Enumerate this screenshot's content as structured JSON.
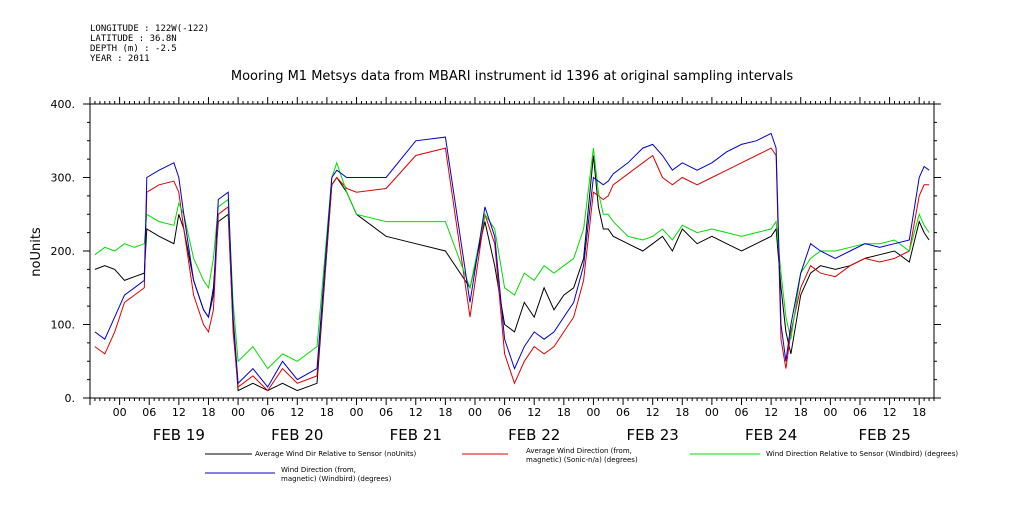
{
  "meta_lines": [
    "LONGITUDE : 122W(-122)",
    "LATITUDE : 36.8N",
    "DEPTH (m) : -2.5",
    "YEAR : 2011"
  ],
  "chart_data": {
    "type": "line",
    "title": "Mooring M1 Metsys data from MBARI instrument id 1396 at original sampling intervals",
    "ylabel": "noUnits",
    "xlabel": "",
    "ylim": [
      0,
      400
    ],
    "xlim": [
      -6,
      165
    ],
    "x_unit": "hours since FEB 19 00:00",
    "y_ticks": [
      0,
      100,
      200,
      300,
      400
    ],
    "y_tick_labels": [
      "0.",
      "100.",
      "200.",
      "300.",
      "400."
    ],
    "x_ticks": [
      0,
      6,
      12,
      18,
      24,
      30,
      36,
      42,
      48,
      54,
      60,
      66,
      72,
      78,
      84,
      90,
      96,
      102,
      108,
      114,
      120,
      126,
      132,
      138,
      144,
      150,
      156,
      162
    ],
    "x_tick_labels": [
      "00",
      "06",
      "12",
      "18",
      "00",
      "06",
      "12",
      "18",
      "00",
      "06",
      "12",
      "18",
      "00",
      "06",
      "12",
      "18",
      "00",
      "06",
      "12",
      "18",
      "00",
      "06",
      "12",
      "18",
      "00",
      "06",
      "12",
      "18"
    ],
    "day_labels": [
      {
        "label": "FEB 19",
        "x": 12
      },
      {
        "label": "FEB 20",
        "x": 36
      },
      {
        "label": "FEB 21",
        "x": 60
      },
      {
        "label": "FEB 22",
        "x": 84
      },
      {
        "label": "FEB 23",
        "x": 108
      },
      {
        "label": "FEB 24",
        "x": 132
      },
      {
        "label": "FEB 25",
        "x": 155
      }
    ],
    "series": [
      {
        "name": "Average Wind Dir Relative to Sensor (noUnits)",
        "color": "#000000",
        "x": [
          -5,
          -3,
          -1,
          1,
          3,
          5,
          5.5,
          8,
          11,
          12,
          13,
          15,
          17,
          18,
          19,
          20,
          22,
          23,
          24,
          27,
          30,
          33,
          36,
          40,
          43,
          44,
          46,
          48,
          54,
          60,
          66,
          71,
          74,
          76,
          78,
          80,
          82,
          84,
          86,
          88,
          90,
          92,
          94,
          96,
          97,
          98,
          99,
          100,
          103,
          106,
          108,
          110,
          112,
          114,
          117,
          120,
          123,
          126,
          129,
          132,
          133,
          134,
          135,
          136,
          138,
          140,
          142,
          145,
          148,
          151,
          154,
          157,
          160,
          162,
          163,
          164
        ],
        "y": [
          175,
          180,
          175,
          160,
          165,
          170,
          230,
          220,
          210,
          250,
          230,
          160,
          120,
          110,
          150,
          240,
          250,
          100,
          10,
          20,
          10,
          20,
          10,
          20,
          290,
          300,
          280,
          250,
          220,
          210,
          200,
          150,
          240,
          180,
          100,
          90,
          130,
          110,
          150,
          120,
          140,
          150,
          190,
          330,
          260,
          230,
          230,
          220,
          210,
          200,
          210,
          220,
          200,
          230,
          210,
          220,
          210,
          200,
          210,
          220,
          230,
          150,
          90,
          60,
          140,
          170,
          180,
          175,
          180,
          190,
          195,
          200,
          185,
          240,
          225,
          215
        ]
      },
      {
        "name": "Average Wind Direction (from, magnetic) (Sonic-n/a) (degrees)",
        "color": "#dd0000",
        "x": [
          -5,
          -3,
          -1,
          1,
          3,
          5,
          5.5,
          8,
          11,
          12,
          13,
          15,
          17,
          18,
          19,
          20,
          22,
          23,
          24,
          27,
          30,
          33,
          36,
          40,
          43,
          44,
          46,
          48,
          54,
          60,
          66,
          71,
          74,
          76,
          78,
          80,
          82,
          84,
          86,
          88,
          90,
          92,
          94,
          96,
          97,
          98,
          99,
          100,
          103,
          106,
          108,
          110,
          112,
          114,
          117,
          120,
          123,
          126,
          129,
          132,
          133,
          134,
          135,
          136,
          138,
          140,
          142,
          145,
          148,
          151,
          154,
          157,
          160,
          162,
          163,
          164
        ],
        "y": [
          70,
          60,
          90,
          130,
          140,
          150,
          280,
          290,
          295,
          280,
          230,
          140,
          100,
          90,
          120,
          250,
          260,
          90,
          15,
          30,
          10,
          40,
          20,
          30,
          290,
          300,
          285,
          280,
          285,
          330,
          340,
          110,
          250,
          210,
          60,
          20,
          50,
          70,
          60,
          70,
          90,
          110,
          160,
          280,
          275,
          270,
          275,
          290,
          305,
          320,
          330,
          300,
          290,
          300,
          290,
          300,
          310,
          320,
          330,
          340,
          330,
          80,
          40,
          90,
          150,
          180,
          170,
          165,
          180,
          190,
          185,
          190,
          200,
          275,
          290,
          290
        ]
      },
      {
        "name": "Wind Direction Relative to Sensor (Windbird) (degrees)",
        "color": "#00dd00",
        "x": [
          -5,
          -3,
          -1,
          1,
          3,
          5,
          5.5,
          8,
          11,
          12,
          13,
          15,
          17,
          18,
          19,
          20,
          22,
          23,
          24,
          27,
          30,
          33,
          36,
          40,
          43,
          44,
          46,
          48,
          54,
          60,
          66,
          71,
          74,
          76,
          78,
          80,
          82,
          84,
          86,
          88,
          90,
          92,
          94,
          96,
          97,
          98,
          99,
          100,
          103,
          106,
          108,
          110,
          112,
          114,
          117,
          120,
          123,
          126,
          129,
          132,
          133,
          134,
          135,
          136,
          138,
          140,
          142,
          145,
          148,
          151,
          154,
          157,
          160,
          162,
          163,
          164
        ],
        "y": [
          195,
          205,
          200,
          210,
          205,
          210,
          250,
          240,
          235,
          265,
          250,
          190,
          160,
          150,
          190,
          260,
          270,
          130,
          50,
          70,
          40,
          60,
          50,
          70,
          300,
          320,
          280,
          250,
          240,
          240,
          240,
          150,
          250,
          230,
          150,
          140,
          170,
          160,
          180,
          170,
          180,
          190,
          230,
          340,
          280,
          250,
          250,
          240,
          220,
          215,
          220,
          230,
          215,
          235,
          225,
          230,
          225,
          220,
          225,
          230,
          240,
          170,
          110,
          80,
          170,
          190,
          200,
          200,
          205,
          210,
          210,
          215,
          200,
          250,
          235,
          225
        ]
      },
      {
        "name": "Wind Direction (from, magnetic) (Windbird) (degrees)",
        "color": "#0000cc",
        "x": [
          -5,
          -3,
          -1,
          1,
          3,
          5,
          5.5,
          8,
          11,
          12,
          13,
          15,
          17,
          18,
          19,
          20,
          22,
          23,
          24,
          27,
          30,
          33,
          36,
          40,
          43,
          44,
          46,
          48,
          54,
          60,
          66,
          71,
          74,
          76,
          78,
          80,
          82,
          84,
          86,
          88,
          90,
          92,
          94,
          96,
          97,
          98,
          99,
          100,
          103,
          106,
          108,
          110,
          112,
          114,
          117,
          120,
          123,
          126,
          129,
          132,
          133,
          134,
          135,
          136,
          138,
          140,
          142,
          145,
          148,
          151,
          154,
          157,
          160,
          162,
          163,
          164
        ],
        "y": [
          90,
          80,
          110,
          140,
          150,
          160,
          300,
          310,
          320,
          300,
          250,
          160,
          120,
          110,
          140,
          270,
          280,
          110,
          20,
          40,
          15,
          50,
          25,
          40,
          300,
          310,
          300,
          300,
          300,
          350,
          355,
          130,
          260,
          220,
          80,
          40,
          70,
          90,
          80,
          90,
          110,
          130,
          180,
          300,
          295,
          290,
          295,
          305,
          320,
          340,
          345,
          330,
          310,
          320,
          310,
          320,
          335,
          345,
          350,
          360,
          340,
          100,
          50,
          100,
          170,
          210,
          200,
          190,
          200,
          210,
          205,
          210,
          215,
          300,
          315,
          310
        ]
      }
    ],
    "legend": {
      "placement": "bottom",
      "entries": [
        "Average Wind Dir Relative to Sensor (noUnits)",
        "Average Wind Direction (from, magnetic) (Sonic-n/a) (degrees)",
        "Wind Direction Relative to Sensor (Windbird) (degrees)",
        "Wind Direction (from, magnetic) (Windbird) (degrees)"
      ],
      "entry_lines": [
        [
          "Average Wind Dir Relative to Sensor (noUnits)"
        ],
        [
          "Average Wind Direction (from,",
          "magnetic) (Sonic-n/a) (degrees)"
        ],
        [
          "Wind Direction Relative to Sensor (Windbird) (degrees)"
        ],
        [
          "Wind Direction (from,",
          "magnetic) (Windbird) (degrees)"
        ]
      ]
    },
    "grid": false
  }
}
